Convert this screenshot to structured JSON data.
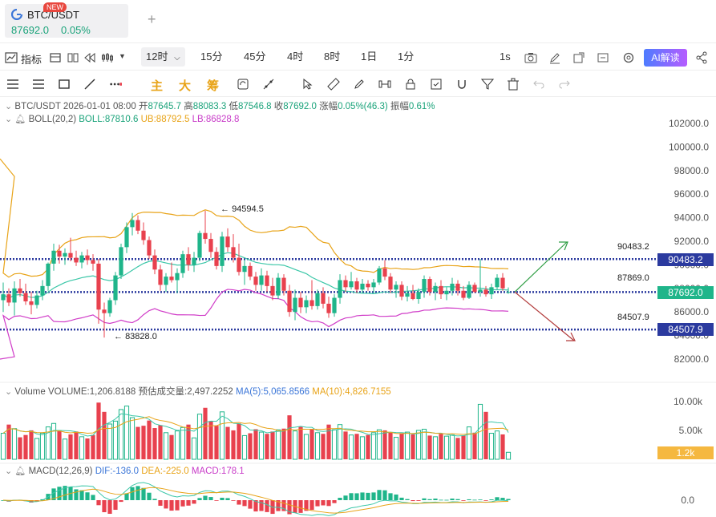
{
  "tab": {
    "title": "BTC/USDT",
    "price": "87692.0",
    "change": "0.05%",
    "badge": "NEW"
  },
  "toolbar": {
    "indicators_label": "指标",
    "intervals": [
      "12时",
      "15分",
      "45分",
      "4时",
      "8时",
      "1日",
      "1分"
    ],
    "active_interval": "12时",
    "right_interval": "1s",
    "ai_label": "AI解读"
  },
  "drawing_toolbar": {
    "tabs": [
      "主",
      "大",
      "筹"
    ]
  },
  "legend": {
    "symbol": "BTC/USDT",
    "datetime": "2026-01-01 08:00",
    "open_label": "开",
    "open": "87645.7",
    "high_label": "高",
    "high": "88083.3",
    "low_label": "低",
    "low": "87546.8",
    "close_label": "收",
    "close": "87692.0",
    "chg_label": "涨幅",
    "chg": "0.05%(46.3)",
    "amp_label": "振幅",
    "amp": "0.61%",
    "boll_name": "BOLL(20,2)",
    "boll": "BOLL:87810.6",
    "ub": "UB:88792.5",
    "lb": "LB:86828.8",
    "vol_name": "Volume",
    "vol_value": "VOLUME:1,206.8188",
    "vol_est_label": "预估成交量:",
    "vol_est": "2,497.2252",
    "ma5": "MA(5):5,065.8566",
    "ma10": "MA(10):4,826.7155",
    "macd_name": "MACD(12,26,9)",
    "dif": "DIF:-136.0",
    "dea": "DEA:-225.0",
    "macd": "MACD:178.1"
  },
  "price_lines": {
    "upper_tag": "90483.2",
    "upper_box": "90483.2",
    "mid_tag": "87869.0",
    "current_box": "87692.0",
    "lower_tag": "84507.9",
    "lower_box": "84507.9",
    "high_marker": "94594.5",
    "low_marker": "83828.0",
    "vol_box": "1.2k"
  },
  "colors": {
    "up": "#1fb58a",
    "down": "#e8414e",
    "boll_mid": "#3cc7a8",
    "boll_ub": "#e8a317",
    "boll_lb": "#d03cc8",
    "dotted_line": "#2b3a9f",
    "current_box": "#1fb58a",
    "level_box": "#2b3a9f",
    "vol_box": "#f5b840"
  },
  "chart_data": {
    "type": "candlestick",
    "price_axis": {
      "ylim": [
        81000,
        103500
      ],
      "ticks": [
        "82000.0",
        "84000.0",
        "86000.0",
        "88000.0",
        "90000.0",
        "92000.0",
        "94000.0",
        "96000.0",
        "98000.0",
        "100000.0",
        "102000.0"
      ]
    },
    "volume_axis": {
      "ylim": [
        0,
        11500
      ],
      "ticks": [
        "5.00k",
        "10.00k"
      ]
    },
    "macd_axis": {
      "ticks": [
        "0.0"
      ]
    },
    "candles": [
      [
        87000,
        88500,
        86000,
        87500
      ],
      [
        87500,
        88000,
        86500,
        86800
      ],
      [
        86800,
        88600,
        85700,
        88000
      ],
      [
        88000,
        88800,
        87300,
        87600
      ],
      [
        87600,
        88400,
        86600,
        86900
      ],
      [
        86900,
        87700,
        85800,
        86600
      ],
      [
        86600,
        87800,
        86300,
        87400
      ],
      [
        87400,
        88700,
        87000,
        88200
      ],
      [
        88200,
        90200,
        87800,
        90100
      ],
      [
        90100,
        91800,
        89500,
        91200
      ],
      [
        91200,
        91700,
        90100,
        90700
      ],
      [
        90700,
        91400,
        90000,
        91000
      ],
      [
        91000,
        92300,
        90300,
        90600
      ],
      [
        90600,
        91200,
        89900,
        90200
      ],
      [
        90200,
        91100,
        89700,
        90800
      ],
      [
        90800,
        91300,
        90000,
        90400
      ],
      [
        90400,
        90900,
        89500,
        90100
      ],
      [
        90100,
        90500,
        85000,
        86200
      ],
      [
        86200,
        86800,
        83828,
        85900
      ],
      [
        85900,
        87200,
        85600,
        87000
      ],
      [
        87000,
        89400,
        86600,
        89100
      ],
      [
        89100,
        91800,
        88800,
        91500
      ],
      [
        91500,
        93600,
        91000,
        93200
      ],
      [
        93200,
        94400,
        92500,
        93800
      ],
      [
        93800,
        94200,
        92600,
        92900
      ],
      [
        92900,
        93600,
        91700,
        92100
      ],
      [
        92100,
        92400,
        90500,
        90800
      ],
      [
        90800,
        91300,
        89200,
        89600
      ],
      [
        89600,
        90000,
        87800,
        88300
      ],
      [
        88300,
        89300,
        87700,
        89000
      ],
      [
        89000,
        90200,
        88500,
        88700
      ],
      [
        88700,
        89700,
        87600,
        89300
      ],
      [
        89300,
        91200,
        88900,
        90900
      ],
      [
        90900,
        91500,
        89500,
        90000
      ],
      [
        90000,
        91100,
        89400,
        90600
      ],
      [
        90600,
        92900,
        90300,
        92700
      ],
      [
        92700,
        94594.5,
        91800,
        92200
      ],
      [
        92200,
        92700,
        90600,
        91100
      ],
      [
        91100,
        91500,
        89600,
        89900
      ],
      [
        89900,
        92800,
        89400,
        92400
      ],
      [
        92400,
        93100,
        91100,
        91500
      ],
      [
        91500,
        92600,
        90200,
        90600
      ],
      [
        90600,
        91800,
        89100,
        89400
      ],
      [
        89400,
        90400,
        88300,
        89900
      ],
      [
        89900,
        90200,
        88700,
        89000
      ],
      [
        89000,
        89400,
        87800,
        88300
      ],
      [
        88300,
        89700,
        87800,
        89100
      ],
      [
        89100,
        89500,
        87700,
        88200
      ],
      [
        88200,
        88900,
        87000,
        87400
      ],
      [
        87400,
        89300,
        87100,
        88900
      ],
      [
        88900,
        89200,
        87400,
        87800
      ],
      [
        87800,
        88300,
        85600,
        86000
      ],
      [
        86000,
        87900,
        85300,
        87200
      ],
      [
        87200,
        87700,
        85900,
        86400
      ],
      [
        86400,
        87400,
        85900,
        87000
      ],
      [
        87000,
        88700,
        86200,
        86500
      ],
      [
        86500,
        87900,
        86200,
        87600
      ],
      [
        87600,
        88100,
        86300,
        86700
      ],
      [
        86700,
        87300,
        85500,
        85900
      ],
      [
        85900,
        87500,
        85600,
        87200
      ],
      [
        87200,
        89200,
        86700,
        88700
      ],
      [
        88700,
        89100,
        87700,
        88100
      ],
      [
        88100,
        89400,
        87900,
        88600
      ],
      [
        88600,
        88900,
        87600,
        87900
      ],
      [
        87900,
        88800,
        87600,
        88400
      ],
      [
        88400,
        88700,
        87800,
        88100
      ],
      [
        88100,
        88800,
        87600,
        88500
      ],
      [
        88500,
        89900,
        88300,
        89700
      ],
      [
        89700,
        90400,
        88700,
        89000
      ],
      [
        89000,
        89300,
        87600,
        87900
      ],
      [
        87900,
        88600,
        87200,
        88300
      ],
      [
        88300,
        88600,
        87000,
        87300
      ],
      [
        87300,
        88200,
        86900,
        87600
      ],
      [
        87600,
        88300,
        87000,
        87100
      ],
      [
        87100,
        88000,
        86700,
        87700
      ],
      [
        87700,
        89100,
        87200,
        88800
      ],
      [
        88800,
        89000,
        87400,
        87700
      ],
      [
        87700,
        88500,
        87000,
        88200
      ],
      [
        88200,
        88700,
        87100,
        87500
      ],
      [
        87500,
        88100,
        87000,
        87800
      ],
      [
        87800,
        88900,
        87400,
        88400
      ],
      [
        88400,
        88700,
        87400,
        87800
      ],
      [
        87800,
        88200,
        87000,
        87200
      ],
      [
        87200,
        88600,
        87100,
        88300
      ],
      [
        88300,
        88500,
        87600,
        87700
      ],
      [
        87700,
        90500,
        87300,
        87900
      ],
      [
        87900,
        88200,
        87300,
        87500
      ],
      [
        87500,
        88400,
        87100,
        88100
      ],
      [
        88100,
        89200,
        87900,
        88900
      ],
      [
        88900,
        89300,
        87800,
        88000
      ],
      [
        87645.7,
        88083.3,
        87546.8,
        87692.0
      ]
    ],
    "volume": [
      4500,
      6000,
      5300,
      3800,
      4200,
      5000,
      3600,
      4500,
      5600,
      6200,
      5000,
      3500,
      4300,
      4800,
      3900,
      3600,
      4200,
      9800,
      8200,
      6100,
      6600,
      8600,
      9200,
      7200,
      5600,
      5800,
      6700,
      5400,
      5900,
      4600,
      4200,
      4900,
      5500,
      6000,
      3700,
      7800,
      8900,
      6600,
      5800,
      8200,
      5600,
      5000,
      6200,
      4100,
      4500,
      5200,
      4700,
      4400,
      4800,
      5100,
      5300,
      7600,
      4900,
      5600,
      4300,
      5200,
      4600,
      4400,
      6000,
      5100,
      6000,
      4800,
      4200,
      4400,
      3900,
      4200,
      4600,
      5100,
      5000,
      4600,
      3800,
      4500,
      4700,
      4300,
      5000,
      5200,
      4100,
      3900,
      4400,
      4000,
      4200,
      3700,
      4100,
      5600,
      4600,
      9500,
      8200,
      4500,
      4900,
      4300,
      1206.8
    ]
  }
}
